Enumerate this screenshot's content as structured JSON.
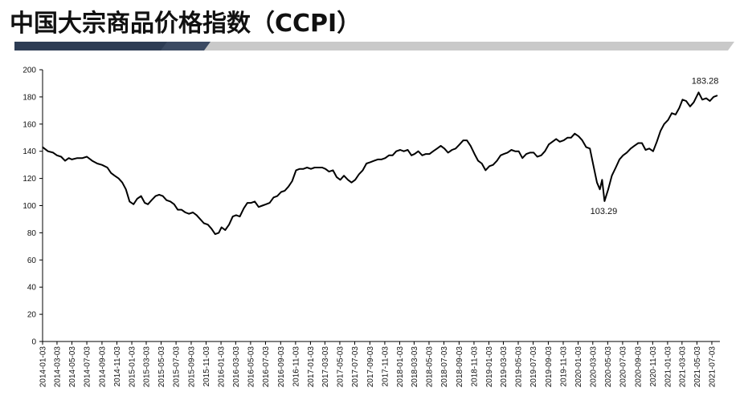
{
  "title": "中国大宗商品价格指数（CCPI）",
  "colors": {
    "line": "#000000",
    "band_dark": "#3a4b63",
    "band_light": "#c8c8c8",
    "axis": "#000000"
  },
  "chart_data": {
    "type": "line",
    "title": "中国大宗商品价格指数（CCPI）",
    "xlabel": "",
    "ylabel": "",
    "ylim": [
      0,
      200
    ],
    "yticks": [
      0,
      20,
      40,
      60,
      80,
      100,
      120,
      140,
      160,
      180,
      200
    ],
    "grid": false,
    "xtick_labels": [
      "2014-01-03",
      "2014-03-03",
      "2014-05-03",
      "2014-07-03",
      "2014-09-03",
      "2014-11-03",
      "2015-01-03",
      "2015-03-03",
      "2015-05-03",
      "2015-07-03",
      "2015-09-03",
      "2015-11-03",
      "2016-01-03",
      "2016-03-03",
      "2016-05-03",
      "2016-07-03",
      "2016-09-03",
      "2016-11-03",
      "2017-01-03",
      "2017-03-03",
      "2017-05-03",
      "2017-07-03",
      "2017-09-03",
      "2017-11-03",
      "2018-01-03",
      "2018-03-03",
      "2018-05-03",
      "2018-07-03",
      "2018-09-03",
      "2018-11-03",
      "2019-01-03",
      "2019-03-03",
      "2019-05-03",
      "2019-07-03",
      "2019-09-03",
      "2019-11-03",
      "2020-01-03",
      "2020-03-03",
      "2020-05-03",
      "2020-07-03",
      "2020-09-03",
      "2020-11-03",
      "2021-01-03",
      "2021-03-03",
      "2021-05-03",
      "2021-07-03"
    ],
    "annotations": [
      {
        "label": "103.29",
        "x": "2020-04-20",
        "y": 103.29
      },
      {
        "label": "183.28",
        "x": "2021-05-10",
        "y": 183.28
      }
    ],
    "series": [
      {
        "points": [
          [
            "2014-01-03",
            143
          ],
          [
            "2014-01-25",
            140
          ],
          [
            "2014-02-15",
            139
          ],
          [
            "2014-03-03",
            137
          ],
          [
            "2014-03-20",
            136
          ],
          [
            "2014-04-05",
            133
          ],
          [
            "2014-04-20",
            135
          ],
          [
            "2014-05-03",
            134
          ],
          [
            "2014-05-25",
            135
          ],
          [
            "2014-06-15",
            135
          ],
          [
            "2014-07-03",
            136
          ],
          [
            "2014-07-25",
            133
          ],
          [
            "2014-08-15",
            131
          ],
          [
            "2014-09-03",
            130
          ],
          [
            "2014-09-25",
            128
          ],
          [
            "2014-10-10",
            124
          ],
          [
            "2014-10-25",
            122
          ],
          [
            "2014-11-10",
            120
          ],
          [
            "2014-11-25",
            117
          ],
          [
            "2014-12-10",
            112
          ],
          [
            "2014-12-25",
            103
          ],
          [
            "2015-01-10",
            101
          ],
          [
            "2015-01-25",
            105
          ],
          [
            "2015-02-10",
            107
          ],
          [
            "2015-02-25",
            102
          ],
          [
            "2015-03-10",
            101
          ],
          [
            "2015-03-25",
            104
          ],
          [
            "2015-04-10",
            107
          ],
          [
            "2015-04-25",
            108
          ],
          [
            "2015-05-10",
            107
          ],
          [
            "2015-05-25",
            104
          ],
          [
            "2015-06-10",
            103
          ],
          [
            "2015-06-25",
            101
          ],
          [
            "2015-07-10",
            97
          ],
          [
            "2015-07-25",
            97
          ],
          [
            "2015-08-10",
            95
          ],
          [
            "2015-08-25",
            94
          ],
          [
            "2015-09-10",
            95
          ],
          [
            "2015-09-25",
            93
          ],
          [
            "2015-10-10",
            90
          ],
          [
            "2015-10-25",
            87
          ],
          [
            "2015-11-10",
            86
          ],
          [
            "2015-11-25",
            83
          ],
          [
            "2015-12-10",
            79
          ],
          [
            "2015-12-25",
            80
          ],
          [
            "2016-01-05",
            84
          ],
          [
            "2016-01-20",
            82
          ],
          [
            "2016-02-05",
            86
          ],
          [
            "2016-02-20",
            92
          ],
          [
            "2016-03-05",
            93
          ],
          [
            "2016-03-20",
            92
          ],
          [
            "2016-04-05",
            98
          ],
          [
            "2016-04-20",
            102
          ],
          [
            "2016-05-05",
            102
          ],
          [
            "2016-05-20",
            103
          ],
          [
            "2016-06-05",
            99
          ],
          [
            "2016-06-20",
            100
          ],
          [
            "2016-07-05",
            101
          ],
          [
            "2016-07-20",
            102
          ],
          [
            "2016-08-05",
            106
          ],
          [
            "2016-08-20",
            107
          ],
          [
            "2016-09-05",
            110
          ],
          [
            "2016-09-20",
            111
          ],
          [
            "2016-10-05",
            114
          ],
          [
            "2016-10-20",
            118
          ],
          [
            "2016-11-05",
            126
          ],
          [
            "2016-11-20",
            127
          ],
          [
            "2016-12-05",
            127
          ],
          [
            "2016-12-20",
            128
          ],
          [
            "2017-01-05",
            127
          ],
          [
            "2017-01-20",
            128
          ],
          [
            "2017-02-05",
            128
          ],
          [
            "2017-02-20",
            128
          ],
          [
            "2017-03-05",
            127
          ],
          [
            "2017-03-20",
            125
          ],
          [
            "2017-04-05",
            126
          ],
          [
            "2017-04-20",
            121
          ],
          [
            "2017-05-05",
            119
          ],
          [
            "2017-05-20",
            122
          ],
          [
            "2017-06-05",
            119
          ],
          [
            "2017-06-20",
            117
          ],
          [
            "2017-07-05",
            119
          ],
          [
            "2017-07-20",
            123
          ],
          [
            "2017-08-05",
            126
          ],
          [
            "2017-08-20",
            131
          ],
          [
            "2017-09-05",
            132
          ],
          [
            "2017-09-20",
            133
          ],
          [
            "2017-10-05",
            134
          ],
          [
            "2017-10-20",
            134
          ],
          [
            "2017-11-05",
            135
          ],
          [
            "2017-11-20",
            137
          ],
          [
            "2017-12-05",
            137
          ],
          [
            "2017-12-20",
            140
          ],
          [
            "2018-01-05",
            141
          ],
          [
            "2018-01-20",
            140
          ],
          [
            "2018-02-05",
            141
          ],
          [
            "2018-02-20",
            137
          ],
          [
            "2018-03-05",
            138
          ],
          [
            "2018-03-20",
            140
          ],
          [
            "2018-04-05",
            137
          ],
          [
            "2018-04-20",
            138
          ],
          [
            "2018-05-05",
            138
          ],
          [
            "2018-05-20",
            140
          ],
          [
            "2018-06-05",
            142
          ],
          [
            "2018-06-20",
            144
          ],
          [
            "2018-07-05",
            142
          ],
          [
            "2018-07-20",
            139
          ],
          [
            "2018-08-05",
            141
          ],
          [
            "2018-08-20",
            142
          ],
          [
            "2018-09-05",
            145
          ],
          [
            "2018-09-20",
            148
          ],
          [
            "2018-10-05",
            148
          ],
          [
            "2018-10-20",
            144
          ],
          [
            "2018-11-05",
            138
          ],
          [
            "2018-11-20",
            133
          ],
          [
            "2018-12-05",
            131
          ],
          [
            "2018-12-20",
            126
          ],
          [
            "2019-01-05",
            129
          ],
          [
            "2019-01-20",
            130
          ],
          [
            "2019-02-05",
            133
          ],
          [
            "2019-02-20",
            137
          ],
          [
            "2019-03-05",
            138
          ],
          [
            "2019-03-20",
            139
          ],
          [
            "2019-04-05",
            141
          ],
          [
            "2019-04-20",
            140
          ],
          [
            "2019-05-05",
            140
          ],
          [
            "2019-05-20",
            135
          ],
          [
            "2019-06-05",
            138
          ],
          [
            "2019-06-20",
            139
          ],
          [
            "2019-07-05",
            139
          ],
          [
            "2019-07-20",
            136
          ],
          [
            "2019-08-05",
            137
          ],
          [
            "2019-08-20",
            140
          ],
          [
            "2019-09-05",
            145
          ],
          [
            "2019-09-20",
            147
          ],
          [
            "2019-10-05",
            149
          ],
          [
            "2019-10-20",
            147
          ],
          [
            "2019-11-05",
            148
          ],
          [
            "2019-11-20",
            150
          ],
          [
            "2019-12-05",
            150
          ],
          [
            "2019-12-20",
            153
          ],
          [
            "2020-01-05",
            151
          ],
          [
            "2020-01-20",
            148
          ],
          [
            "2020-02-05",
            143
          ],
          [
            "2020-02-20",
            142
          ],
          [
            "2020-03-05",
            130
          ],
          [
            "2020-03-20",
            117
          ],
          [
            "2020-04-01",
            112
          ],
          [
            "2020-04-10",
            119
          ],
          [
            "2020-04-20",
            103.29
          ],
          [
            "2020-05-05",
            112
          ],
          [
            "2020-05-20",
            122
          ],
          [
            "2020-06-05",
            128
          ],
          [
            "2020-06-20",
            134
          ],
          [
            "2020-07-05",
            137
          ],
          [
            "2020-07-20",
            139
          ],
          [
            "2020-08-05",
            142
          ],
          [
            "2020-08-20",
            144
          ],
          [
            "2020-09-05",
            146
          ],
          [
            "2020-09-20",
            146
          ],
          [
            "2020-10-05",
            141
          ],
          [
            "2020-10-20",
            142
          ],
          [
            "2020-11-05",
            140
          ],
          [
            "2020-11-20",
            147
          ],
          [
            "2020-12-05",
            155
          ],
          [
            "2020-12-20",
            160
          ],
          [
            "2021-01-05",
            163
          ],
          [
            "2021-01-20",
            168
          ],
          [
            "2021-02-05",
            167
          ],
          [
            "2021-02-20",
            172
          ],
          [
            "2021-03-05",
            178
          ],
          [
            "2021-03-20",
            177
          ],
          [
            "2021-04-05",
            173
          ],
          [
            "2021-04-20",
            176
          ],
          [
            "2021-05-10",
            183.28
          ],
          [
            "2021-05-25",
            178
          ],
          [
            "2021-06-10",
            179
          ],
          [
            "2021-06-25",
            177
          ],
          [
            "2021-07-10",
            180
          ],
          [
            "2021-07-25",
            181
          ]
        ]
      }
    ]
  }
}
